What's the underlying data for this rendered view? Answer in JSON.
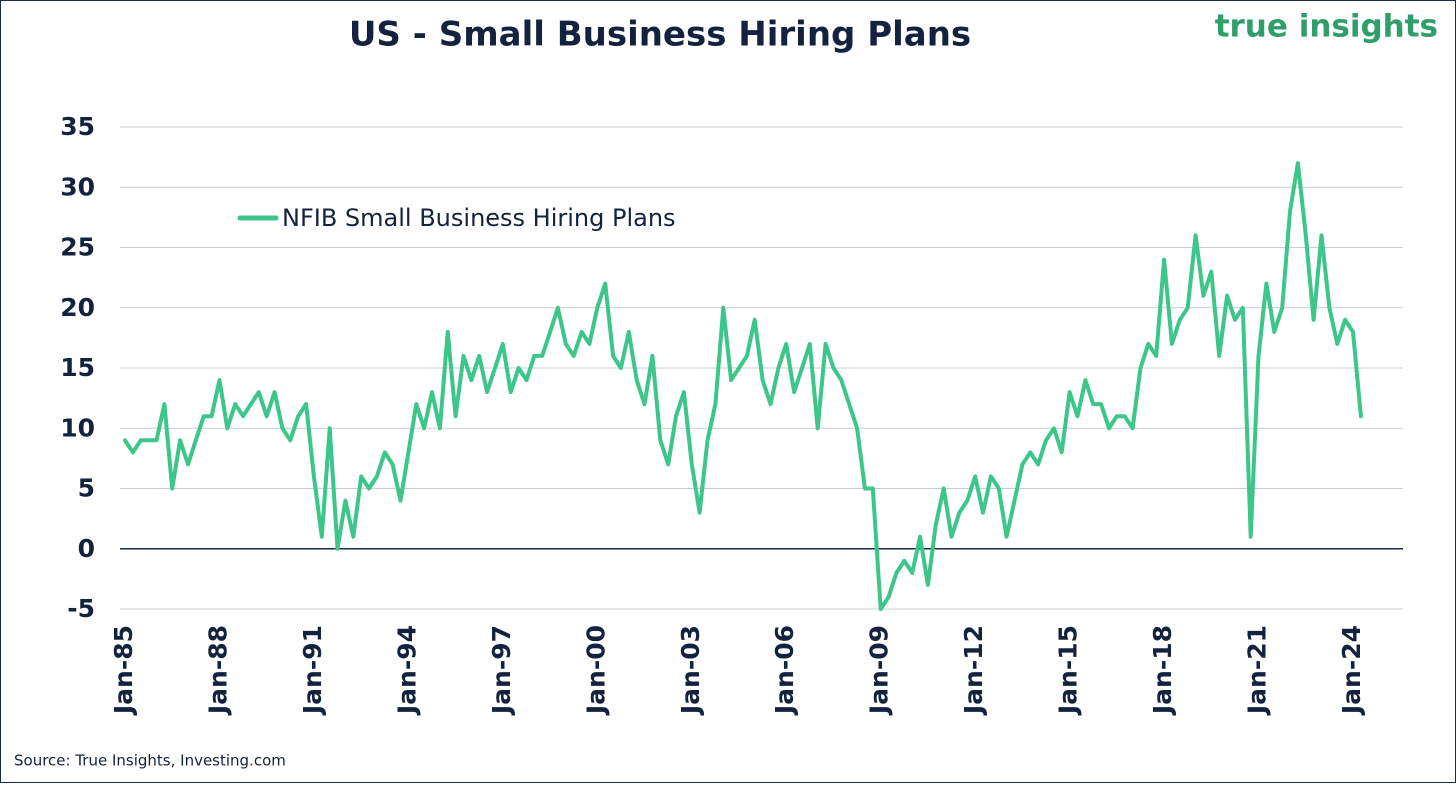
{
  "chart_data": {
    "type": "line",
    "title": "US - Small Business Hiring Plans",
    "brand": "true insights",
    "source": "Source: True Insights, Investing.com",
    "categories": [
      "Jan-85",
      null,
      null,
      null,
      null,
      null,
      null,
      null,
      null,
      null,
      null,
      null,
      "Jan-88",
      null,
      null,
      null,
      null,
      null,
      null,
      null,
      null,
      null,
      null,
      null,
      "Jan-91",
      null,
      null,
      null,
      null,
      null,
      null,
      null,
      null,
      null,
      null,
      null,
      "Jan-94",
      null,
      null,
      null,
      null,
      null,
      null,
      null,
      null,
      null,
      null,
      null,
      "Jan-97",
      null,
      null,
      null,
      null,
      null,
      null,
      null,
      null,
      null,
      null,
      null,
      "Jan-00",
      null,
      null,
      null,
      null,
      null,
      null,
      null,
      null,
      null,
      null,
      null,
      "Jan-03",
      null,
      null,
      null,
      null,
      null,
      null,
      null,
      null,
      null,
      null,
      null,
      "Jan-06",
      null,
      null,
      null,
      null,
      null,
      null,
      null,
      null,
      null,
      null,
      null,
      "Jan-09",
      null,
      null,
      null,
      null,
      null,
      null,
      null,
      null,
      null,
      null,
      null,
      "Jan-12",
      null,
      null,
      null,
      null,
      null,
      null,
      null,
      null,
      null,
      null,
      null,
      "Jan-15",
      null,
      null,
      null,
      null,
      null,
      null,
      null,
      null,
      null,
      null,
      null,
      "Jan-18",
      null,
      null,
      null,
      null,
      null,
      null,
      null,
      null,
      null,
      null,
      null,
      "Jan-21",
      null,
      null,
      null,
      null,
      null,
      null,
      null,
      null,
      null,
      null,
      null,
      "Jan-24",
      null
    ],
    "series": [
      {
        "name": "NFIB Small Business Hiring Plans",
        "color": "#3cc68a",
        "values": [
          9,
          8,
          9,
          9,
          9,
          12,
          5,
          9,
          7,
          9,
          11,
          11,
          14,
          10,
          12,
          11,
          12,
          13,
          11,
          13,
          10,
          9,
          11,
          12,
          6,
          1,
          10,
          0,
          4,
          1,
          6,
          5,
          6,
          8,
          7,
          4,
          8,
          12,
          10,
          13,
          10,
          18,
          11,
          16,
          14,
          16,
          13,
          15,
          17,
          13,
          15,
          14,
          16,
          16,
          18,
          20,
          17,
          16,
          18,
          17,
          20,
          22,
          16,
          15,
          18,
          14,
          12,
          16,
          9,
          7,
          11,
          13,
          7,
          3,
          9,
          12,
          20,
          14,
          15,
          16,
          19,
          14,
          12,
          15,
          17,
          13,
          15,
          17,
          10,
          17,
          15,
          14,
          12,
          10,
          5,
          5,
          -5,
          -4,
          -2,
          -1,
          -2,
          1,
          -3,
          2,
          5,
          1,
          3,
          4,
          6,
          3,
          6,
          5,
          1,
          4,
          7,
          8,
          7,
          9,
          10,
          8,
          13,
          11,
          14,
          12,
          12,
          10,
          11,
          11,
          10,
          15,
          17,
          16,
          24,
          17,
          19,
          20,
          26,
          21,
          23,
          16,
          21,
          19,
          20,
          1,
          16,
          22,
          18,
          20,
          28,
          32,
          26,
          19,
          26,
          20,
          17,
          19,
          18,
          11
        ]
      }
    ],
    "ylim": [
      -5,
      35
    ],
    "yticks": [
      -5,
      0,
      5,
      10,
      15,
      20,
      25,
      30,
      35
    ],
    "grid": true,
    "legend": "upper left"
  }
}
